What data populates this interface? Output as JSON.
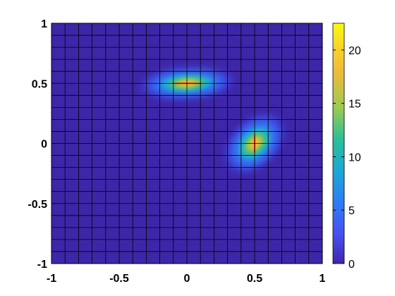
{
  "chart_data": {
    "type": "heatmap",
    "title": "",
    "xlabel": "",
    "ylabel": "",
    "xlim": [
      -1,
      1
    ],
    "ylim": [
      -1,
      1
    ],
    "x_ticks": [
      "-1",
      "-0.5",
      "0",
      "0.5",
      "1"
    ],
    "y_ticks": [
      "-1",
      "-0.5",
      "0",
      "0.5",
      "1"
    ],
    "grid": "on",
    "grid_divisions": 20,
    "colormap": "parula",
    "colorbar": {
      "location": "right",
      "limits": [
        0,
        22.5
      ],
      "ticks": [
        "0",
        "5",
        "10",
        "15",
        "20"
      ],
      "colors": [
        "#3e26a8",
        "#4850f2",
        "#2e7bf6",
        "#1ba7d7",
        "#2cc098",
        "#9ccb50",
        "#f0ba3a",
        "#f9d32b",
        "#f9fb0e"
      ]
    },
    "peaks": [
      {
        "x": 0.0,
        "y": 0.5,
        "max": 22.5,
        "orientation": "horizontal",
        "spread_x": 0.12,
        "spread_y": 0.045
      },
      {
        "x": 0.5,
        "y": 0.0,
        "max": 22.5,
        "orientation": "vertical",
        "spread_x": 0.07,
        "spread_y": 0.085
      }
    ],
    "background_value": 0
  }
}
